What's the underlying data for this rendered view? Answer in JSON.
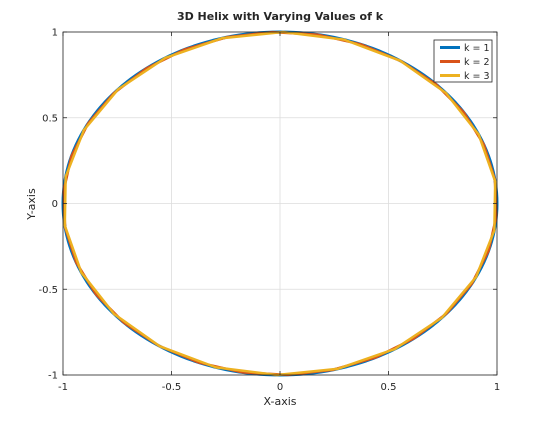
{
  "chart_data": {
    "type": "line",
    "title": "3D Helix with Varying Values of k",
    "xlabel": "X-axis",
    "ylabel": "Y-axis",
    "xlim": [
      -1,
      1
    ],
    "ylim": [
      -1,
      1
    ],
    "xticks": [
      -1,
      -0.5,
      0,
      0.5,
      1
    ],
    "yticks": [
      -1,
      -0.5,
      0,
      0.5,
      1
    ],
    "xtick_labels": [
      "-1",
      "-0.5",
      "0",
      "0.5",
      "1"
    ],
    "ytick_labels": [
      "-1",
      "-0.5",
      "0",
      "0.5",
      "1"
    ],
    "grid": true,
    "legend_position": "top-right",
    "series": [
      {
        "name": "k = 1",
        "color": "#0072BD",
        "points_per_turn": 200,
        "turns": 1,
        "linewidth": 3
      },
      {
        "name": "k = 2",
        "color": "#D95319",
        "points_per_turn": 30,
        "turns": 2,
        "linewidth": 2.5
      },
      {
        "name": "k = 3",
        "color": "#EDB120",
        "points_per_turn": 22,
        "turns": 3,
        "linewidth": 2.5
      }
    ]
  }
}
